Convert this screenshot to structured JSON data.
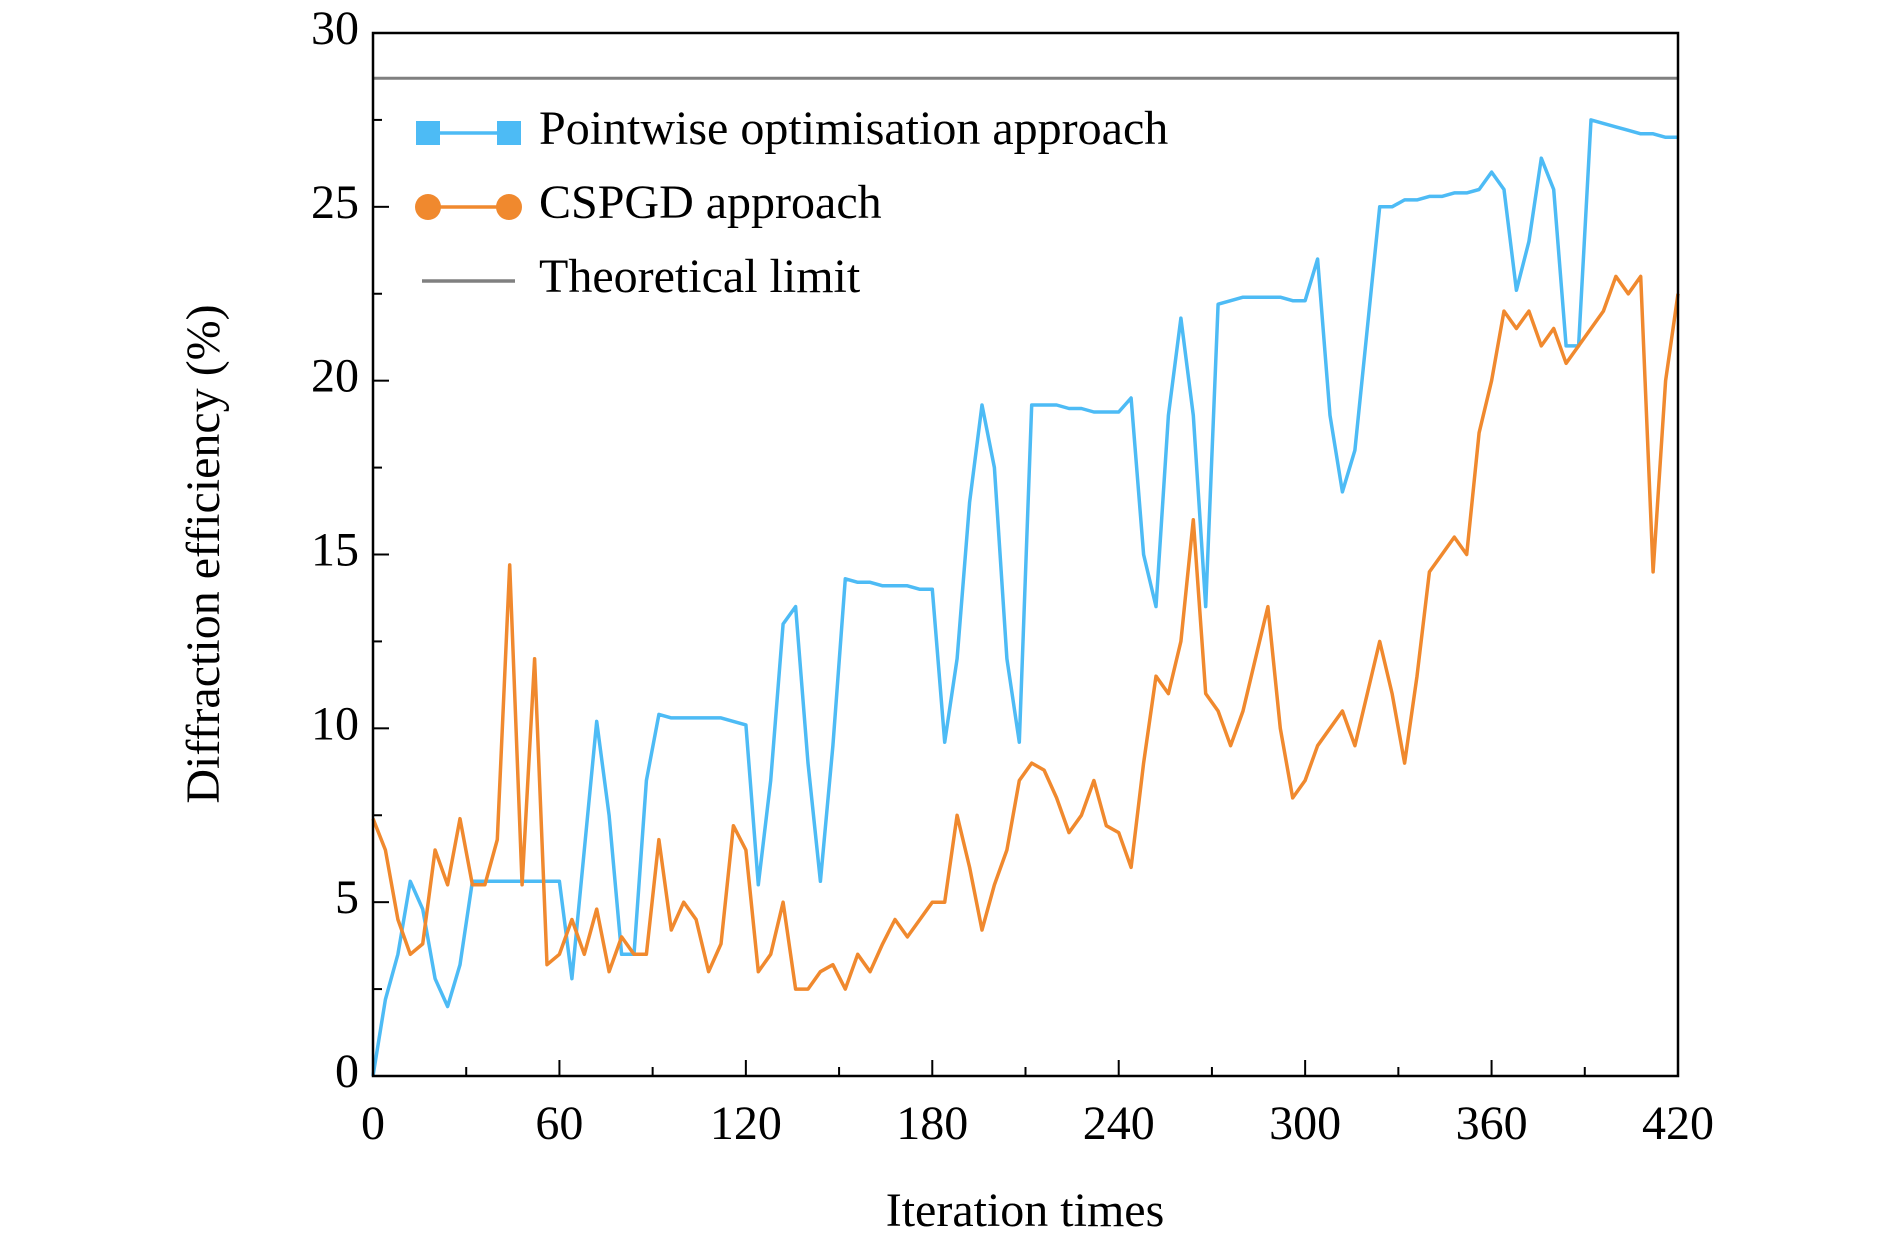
{
  "chart_data": {
    "type": "line",
    "x_label": "Iteration times",
    "y_label": "Diffraction efficiency (%)",
    "x": [
      0,
      4,
      8,
      12,
      16,
      20,
      24,
      28,
      32,
      36,
      40,
      44,
      48,
      52,
      56,
      60,
      64,
      68,
      72,
      76,
      80,
      84,
      88,
      92,
      96,
      100,
      104,
      108,
      112,
      116,
      120,
      124,
      128,
      132,
      136,
      140,
      144,
      148,
      152,
      156,
      160,
      164,
      168,
      172,
      176,
      180,
      184,
      188,
      192,
      196,
      200,
      204,
      208,
      212,
      216,
      220,
      224,
      228,
      232,
      236,
      240,
      244,
      248,
      252,
      256,
      260,
      264,
      268,
      272,
      276,
      280,
      284,
      288,
      292,
      296,
      300,
      304,
      308,
      312,
      316,
      320,
      324,
      328,
      332,
      336,
      340,
      344,
      348,
      352,
      356,
      360,
      364,
      368,
      372,
      376,
      380,
      384,
      388,
      392,
      396,
      400,
      404,
      408,
      412,
      416,
      420
    ],
    "series": [
      {
        "name": "Pointwise optimisation approach",
        "color": "#4dbbf5",
        "marker": "square",
        "values": [
          0,
          2.2,
          3.5,
          5.6,
          4.8,
          2.8,
          2.0,
          3.2,
          5.6,
          5.6,
          5.6,
          5.6,
          5.6,
          5.6,
          5.6,
          5.6,
          2.8,
          6.5,
          10.2,
          7.5,
          3.5,
          3.5,
          8.5,
          10.4,
          10.3,
          10.3,
          10.3,
          10.3,
          10.3,
          10.2,
          10.1,
          5.5,
          8.5,
          13.0,
          13.5,
          9.0,
          5.6,
          9.5,
          14.3,
          14.2,
          14.2,
          14.1,
          14.1,
          14.1,
          14.0,
          14.0,
          9.6,
          12.0,
          16.5,
          19.3,
          17.5,
          12.0,
          9.6,
          19.3,
          19.3,
          19.3,
          19.2,
          19.2,
          19.1,
          19.1,
          19.1,
          19.5,
          15.0,
          13.5,
          19.0,
          21.8,
          19.0,
          13.5,
          22.2,
          22.3,
          22.4,
          22.4,
          22.4,
          22.4,
          22.3,
          22.3,
          23.5,
          19.0,
          16.8,
          18.0,
          21.5,
          25.0,
          25.0,
          25.2,
          25.2,
          25.3,
          25.3,
          25.4,
          25.4,
          25.5,
          26.0,
          25.5,
          22.6,
          24.0,
          26.4,
          25.5,
          21.0,
          21.0,
          27.5,
          27.4,
          27.3,
          27.2,
          27.1,
          27.1,
          27.0,
          27.0
        ]
      },
      {
        "name": "CSPGD approach",
        "color": "#f0892e",
        "marker": "circle",
        "values": [
          7.4,
          6.5,
          4.5,
          3.5,
          3.8,
          6.5,
          5.5,
          7.4,
          5.5,
          5.5,
          6.8,
          14.7,
          5.5,
          12.0,
          3.2,
          3.5,
          4.5,
          3.5,
          4.8,
          3.0,
          4.0,
          3.5,
          3.5,
          6.8,
          4.2,
          5.0,
          4.5,
          3.0,
          3.8,
          7.2,
          6.5,
          3.0,
          3.5,
          5.0,
          2.5,
          2.5,
          3.0,
          3.2,
          2.5,
          3.5,
          3.0,
          3.8,
          4.5,
          4.0,
          4.5,
          5.0,
          5.0,
          7.5,
          6.0,
          4.2,
          5.5,
          6.5,
          8.5,
          9.0,
          8.8,
          8.0,
          7.0,
          7.5,
          8.5,
          7.2,
          7.0,
          6.0,
          9.0,
          11.5,
          11.0,
          12.5,
          16.0,
          11.0,
          10.5,
          9.5,
          10.5,
          12.0,
          13.5,
          10.0,
          8.0,
          8.5,
          9.5,
          10.0,
          10.5,
          9.5,
          11.0,
          12.5,
          11.0,
          9.0,
          11.5,
          14.5,
          15.0,
          15.5,
          15.0,
          18.5,
          20.0,
          22.0,
          21.5,
          22.0,
          21.0,
          21.5,
          20.5,
          21.0,
          21.5,
          22.0,
          23.0,
          22.5,
          23.0,
          14.5,
          20.0,
          22.5
        ]
      }
    ],
    "reference_line": {
      "name": "Theoretical limit",
      "color": "#808080",
      "value": 28.7
    },
    "xlim": [
      0,
      420
    ],
    "xticks": [
      0,
      60,
      120,
      180,
      240,
      300,
      360,
      420
    ],
    "ylim": [
      0,
      30
    ],
    "yticks": [
      0,
      5,
      10,
      15,
      20,
      25,
      30
    ],
    "legend": "upper left"
  }
}
